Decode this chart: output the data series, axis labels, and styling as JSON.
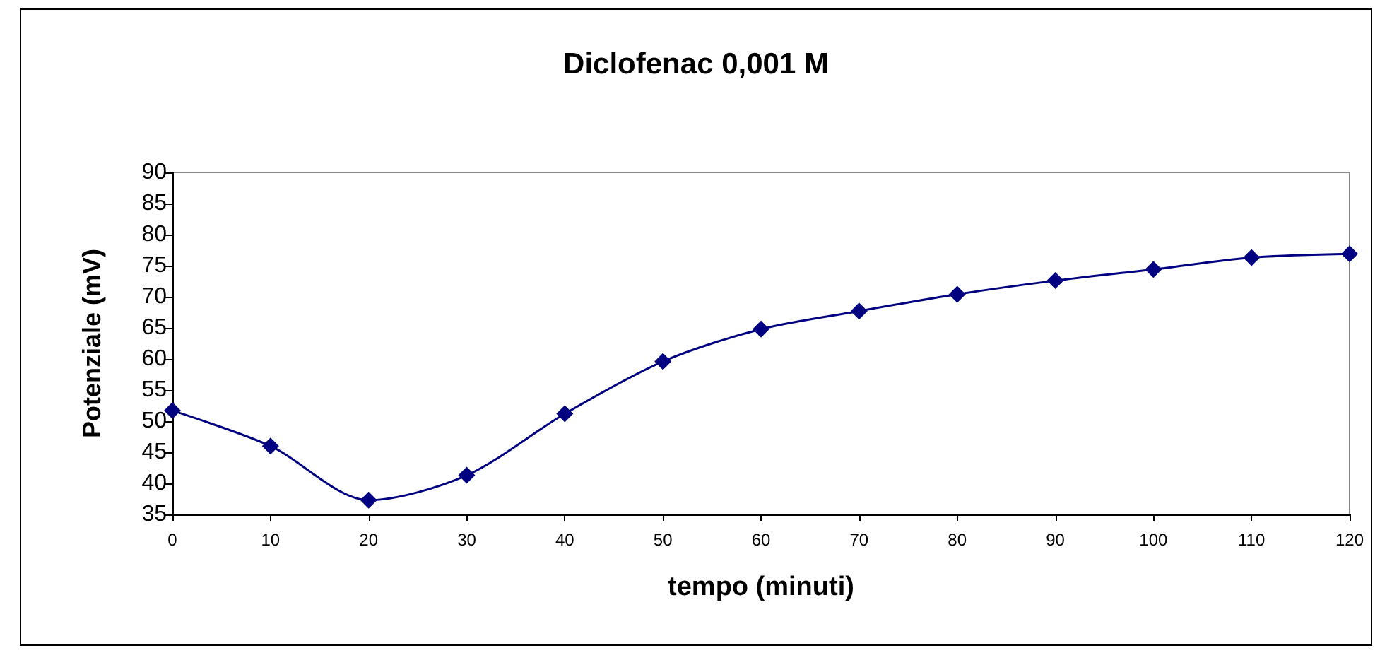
{
  "chart_data": {
    "type": "line",
    "title": "Diclofenac 0,001 M",
    "xlabel": "tempo (minuti)",
    "ylabel": "Potenziale (mV)",
    "x": [
      0,
      10,
      20,
      30,
      40,
      50,
      60,
      70,
      80,
      90,
      100,
      110,
      120
    ],
    "series": [
      {
        "color": "#000080",
        "values": [
          51.7,
          46,
          37.3,
          41.3,
          51.2,
          59.6,
          64.8,
          67.7,
          70.4,
          72.6,
          74.4,
          76.3,
          76.9
        ]
      }
    ],
    "xlim": [
      0,
      120
    ],
    "xticks": [
      0,
      10,
      20,
      30,
      40,
      50,
      60,
      70,
      80,
      90,
      100,
      110,
      120
    ],
    "ylim": [
      35,
      90
    ],
    "yticks": [
      35,
      40,
      45,
      50,
      55,
      60,
      65,
      70,
      75,
      80,
      85,
      90
    ],
    "grid": false,
    "marker": "diamond",
    "line_style": "solid"
  }
}
